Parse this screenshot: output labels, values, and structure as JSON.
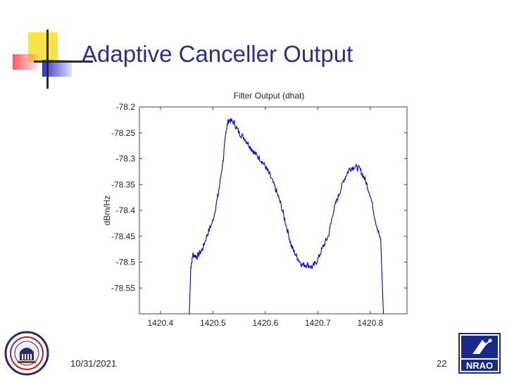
{
  "slide": {
    "title": "Adaptive Canceller Output",
    "date": "10/31/2021",
    "page_number": "22",
    "logo_text": "NRAO",
    "accent_color": "#2e2e8a"
  },
  "chart_data": {
    "type": "line",
    "title": "Filter Output  (dhat)",
    "xlabel": "",
    "ylabel": "dBm/Hz",
    "xlim": [
      1420.36,
      1420.87
    ],
    "ylim": [
      -78.6,
      -78.2
    ],
    "xticks": [
      1420.4,
      1420.5,
      1420.6,
      1420.7,
      1420.8
    ],
    "xtick_labels": [
      "1420.4",
      "1420.5",
      "1420.6",
      "1420.7",
      "1420.8"
    ],
    "yticks": [
      -78.2,
      -78.25,
      -78.3,
      -78.35,
      -78.4,
      -78.45,
      -78.5,
      -78.55
    ],
    "ytick_labels": [
      "-78.2",
      "-78.25",
      "-78.3",
      "-78.35",
      "-78.4",
      "-78.45",
      "-78.5",
      "-78.55"
    ],
    "grid": false,
    "line_color": "#0000cc",
    "series": [
      {
        "name": "dhat",
        "x": [
          1420.455,
          1420.458,
          1420.462,
          1420.47,
          1420.48,
          1420.49,
          1420.5,
          1420.51,
          1420.52,
          1420.525,
          1420.53,
          1420.54,
          1420.55,
          1420.56,
          1420.57,
          1420.58,
          1420.59,
          1420.6,
          1420.61,
          1420.62,
          1420.63,
          1420.64,
          1420.65,
          1420.66,
          1420.67,
          1420.68,
          1420.69,
          1420.7,
          1420.71,
          1420.72,
          1420.73,
          1420.74,
          1420.75,
          1420.76,
          1420.77,
          1420.78,
          1420.79,
          1420.8,
          1420.81,
          1420.82,
          1420.825
        ],
        "y": [
          -78.6,
          -78.51,
          -78.485,
          -78.49,
          -78.475,
          -78.445,
          -78.42,
          -78.37,
          -78.3,
          -78.245,
          -78.225,
          -78.23,
          -78.25,
          -78.26,
          -78.275,
          -78.29,
          -78.3,
          -78.315,
          -78.335,
          -78.36,
          -78.39,
          -78.43,
          -78.47,
          -78.49,
          -78.505,
          -78.505,
          -78.51,
          -78.495,
          -78.47,
          -78.45,
          -78.4,
          -78.37,
          -78.34,
          -78.32,
          -78.315,
          -78.32,
          -78.34,
          -78.37,
          -78.42,
          -78.46,
          -78.6
        ]
      }
    ]
  }
}
